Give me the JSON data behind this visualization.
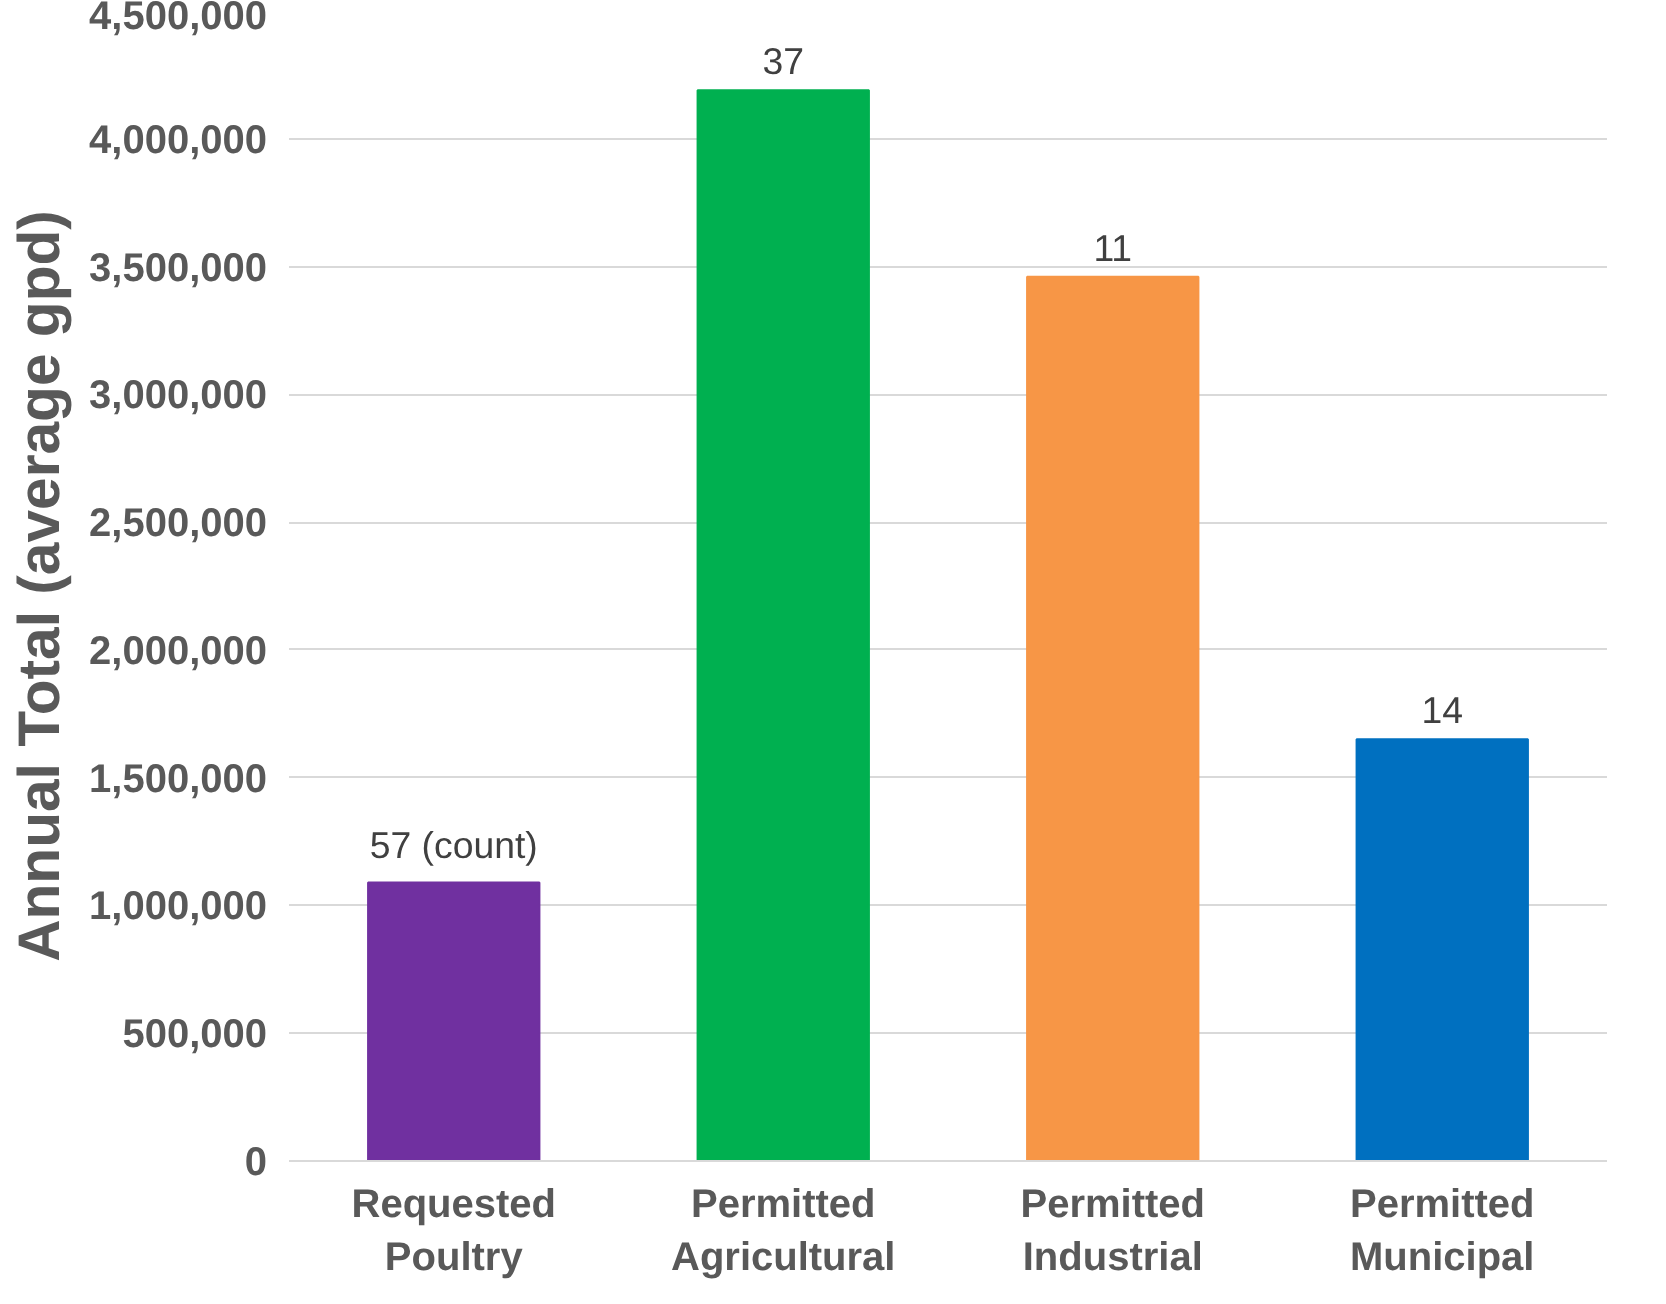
{
  "chart_data": {
    "type": "bar",
    "ylabel": "Annual Total (average gpd)",
    "categories": [
      "Requested Poultry",
      "Permitted Agricultural",
      "Permitted Industrial",
      "Permitted Municipal"
    ],
    "values": [
      1090000,
      4190000,
      3460000,
      1650000
    ],
    "colors": [
      "#7030a0",
      "#00b050",
      "#f79646",
      "#0070c0"
    ],
    "annotations": [
      {
        "text": "57 (count)",
        "x": "Requested Poultry",
        "y": 1090000
      },
      {
        "text": "37",
        "x": "Permitted Agricultural",
        "y": 4190000
      },
      {
        "text": "11",
        "x": "Permitted Industrial",
        "y": 3460000
      },
      {
        "text": "14",
        "x": "Permitted Municipal",
        "y": 1650000
      }
    ],
    "ylim": [
      0,
      4500000
    ],
    "yticks": [
      {
        "value": 0,
        "label": "0"
      },
      {
        "value": 500000,
        "label": "500,000"
      },
      {
        "value": 1000000,
        "label": "1,000,000"
      },
      {
        "value": 1500000,
        "label": "1,500,000"
      },
      {
        "value": 2000000,
        "label": "2,000,000"
      },
      {
        "value": 2500000,
        "label": "2,500,000"
      },
      {
        "value": 3000000,
        "label": "3,000,000"
      },
      {
        "value": 3500000,
        "label": "3,500,000"
      },
      {
        "value": 4000000,
        "label": "4,000,000"
      },
      {
        "value": 4500000,
        "label": "4,500,000"
      }
    ],
    "grid": "y"
  }
}
